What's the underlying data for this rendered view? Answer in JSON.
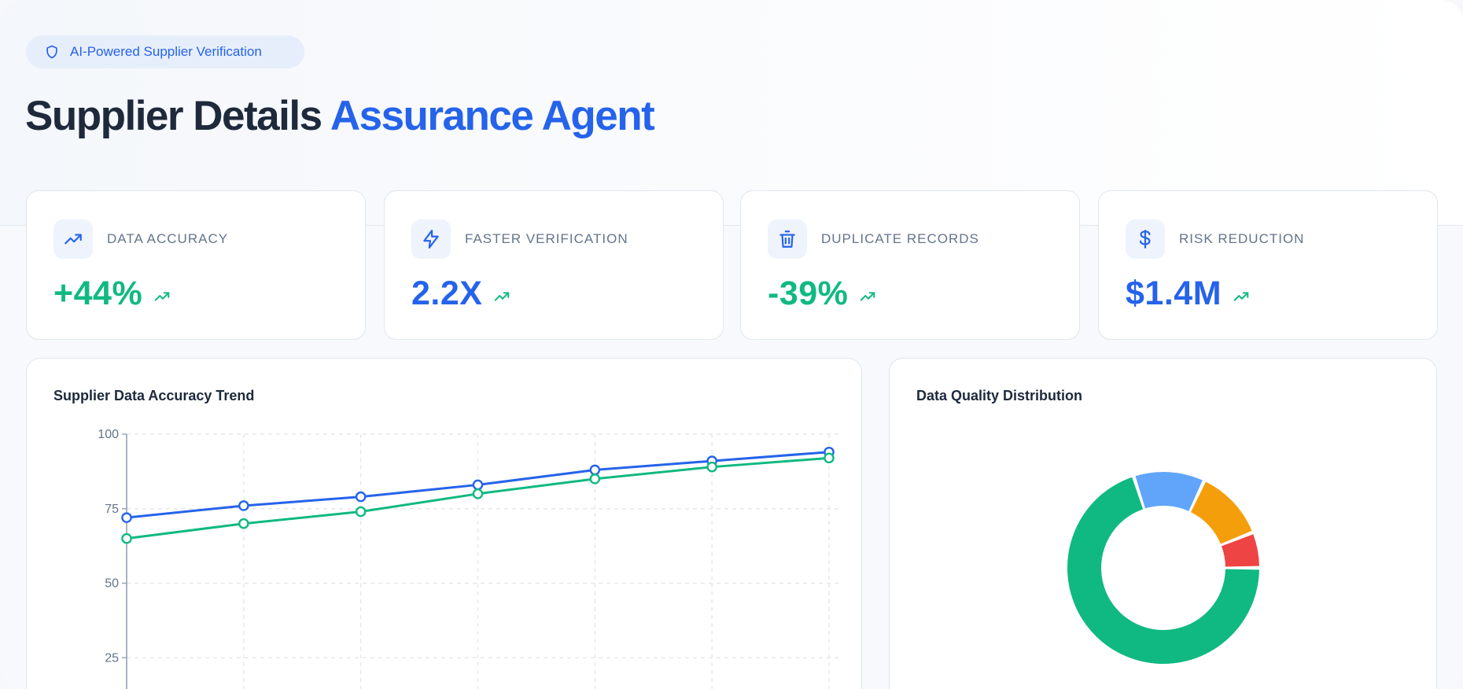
{
  "hero": {
    "badge_label": "AI-Powered Supplier Verification",
    "badge_icon": "shield-icon",
    "title_main": "Supplier Details",
    "title_accent": "Assurance Agent"
  },
  "stats": [
    {
      "label": "DATA ACCURACY",
      "value": "+44%",
      "icon": "trend-up-icon",
      "color": "#10b981"
    },
    {
      "label": "FASTER VERIFICATION",
      "value": "2.2X",
      "icon": "lightning-icon",
      "color": "#2563eb"
    },
    {
      "label": "DUPLICATE RECORDS",
      "value": "-39%",
      "icon": "trash-icon",
      "color": "#10b981"
    },
    {
      "label": "RISK REDUCTION",
      "value": "$1.4M",
      "icon": "dollar-icon",
      "color": "#2563eb"
    }
  ],
  "colors": {
    "accent_blue": "#2563eb",
    "accent_green": "#10b981",
    "warning_orange": "#f59e0b",
    "danger_red": "#ef4444",
    "light_blue": "#60a5fa"
  },
  "chart_data": [
    {
      "type": "line",
      "title": "Supplier Data Accuracy Trend",
      "x": [
        1,
        2,
        3,
        4,
        5,
        6,
        7
      ],
      "ylim": [
        0,
        100
      ],
      "yticks": [
        25,
        50,
        75,
        100
      ],
      "grid": true,
      "series": [
        {
          "color": "#2563eb",
          "values": [
            72,
            76,
            79,
            83,
            88,
            91,
            94
          ]
        },
        {
          "color": "#10b981",
          "values": [
            65,
            70,
            74,
            80,
            85,
            89,
            92
          ]
        }
      ]
    },
    {
      "type": "pie",
      "title": "Data Quality Distribution",
      "donut": true,
      "values": [
        70,
        12,
        12,
        6
      ],
      "colors": [
        "#10b981",
        "#60a5fa",
        "#f59e0b",
        "#ef4444"
      ]
    }
  ]
}
